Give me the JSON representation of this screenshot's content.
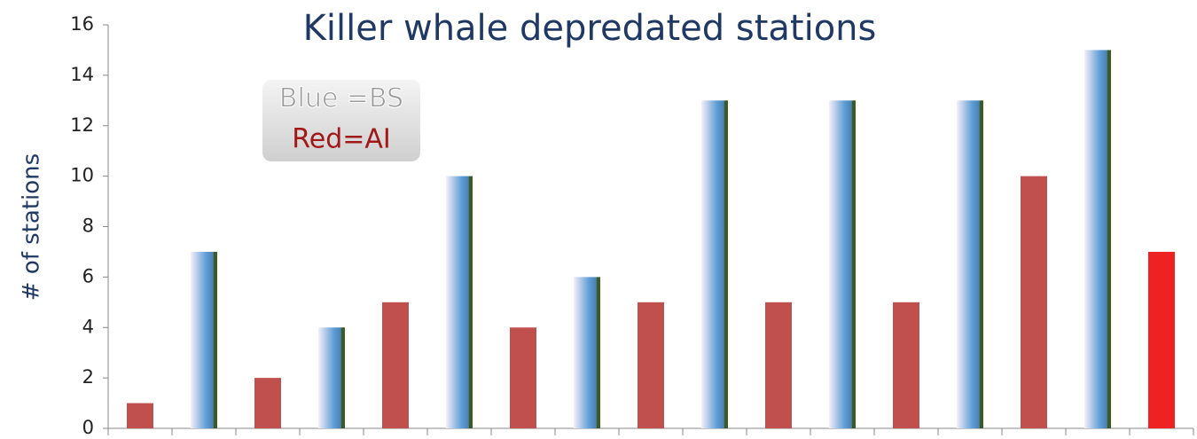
{
  "chart_data": {
    "type": "bar",
    "title": "Killer whale depredated stations",
    "y_label": "# of stations",
    "annotations": [
      "Blue =BS",
      "Red=AI"
    ],
    "categories": [
      null,
      null,
      null,
      null,
      null,
      null,
      null,
      null,
      null,
      null,
      null,
      null,
      null,
      null,
      null,
      null,
      null
    ],
    "values": [
      1,
      7,
      2,
      4,
      5,
      10,
      4,
      6,
      5,
      13,
      5,
      13,
      5,
      13,
      10,
      15,
      7
    ],
    "colors": [
      "#c0504d",
      "#5b9bd5",
      "#c0504d",
      "#5b9bd5",
      "#c0504d",
      "#5b9bd5",
      "#c0504d",
      "#5b9bd5",
      "#c0504d",
      "#5b9bd5",
      "#c0504d",
      "#5b9bd5",
      "#c0504d",
      "#5b9bd5",
      "#c0504d",
      "#5b9bd5",
      "#ee2222"
    ],
    "ylim": [
      0,
      16
    ],
    "yticks": [
      0,
      2,
      4,
      6,
      8,
      10,
      12,
      14,
      16
    ]
  }
}
